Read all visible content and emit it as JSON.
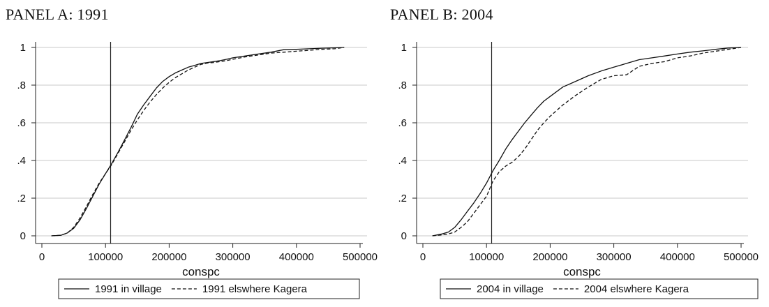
{
  "chart_data": [
    {
      "type": "line",
      "title": "PANEL A: 1991",
      "xlabel": "conspc",
      "ylabel": "",
      "xlim": [
        0,
        500000
      ],
      "ylim": [
        0,
        1
      ],
      "xticks": [
        "0",
        "100000",
        "200000",
        "300000",
        "400000",
        "500000"
      ],
      "yticks": [
        "0",
        ".2",
        ".4",
        ".6",
        ".8",
        "1"
      ],
      "grid": "horizontal",
      "legend_position": "bottom",
      "vline_x": 108000,
      "series": [
        {
          "name": "1991 in village",
          "style": "solid",
          "x": [
            15000,
            30000,
            40000,
            50000,
            60000,
            70000,
            80000,
            90000,
            100000,
            110000,
            120000,
            130000,
            140000,
            150000,
            160000,
            170000,
            180000,
            190000,
            200000,
            210000,
            220000,
            230000,
            240000,
            250000,
            260000,
            270000,
            280000,
            290000,
            300000,
            320000,
            340000,
            360000,
            380000,
            400000,
            420000,
            440000,
            460000,
            475000
          ],
          "y": [
            0,
            0.003,
            0.015,
            0.04,
            0.085,
            0.145,
            0.21,
            0.275,
            0.33,
            0.385,
            0.445,
            0.51,
            0.575,
            0.645,
            0.695,
            0.74,
            0.785,
            0.82,
            0.845,
            0.865,
            0.88,
            0.895,
            0.905,
            0.915,
            0.92,
            0.925,
            0.93,
            0.937,
            0.945,
            0.955,
            0.965,
            0.975,
            0.988,
            0.99,
            0.993,
            0.996,
            0.998,
            1.0
          ]
        },
        {
          "name": "1991 elswhere Kagera",
          "style": "dashed",
          "x": [
            15000,
            30000,
            40000,
            50000,
            60000,
            70000,
            80000,
            90000,
            100000,
            110000,
            120000,
            130000,
            140000,
            150000,
            160000,
            170000,
            180000,
            190000,
            200000,
            210000,
            220000,
            230000,
            240000,
            250000,
            260000,
            270000,
            280000,
            290000,
            300000,
            320000,
            340000,
            360000,
            380000,
            400000,
            420000,
            440000,
            460000,
            475000
          ],
          "y": [
            0,
            0.003,
            0.015,
            0.045,
            0.095,
            0.155,
            0.22,
            0.28,
            0.33,
            0.38,
            0.44,
            0.5,
            0.56,
            0.615,
            0.665,
            0.71,
            0.75,
            0.785,
            0.815,
            0.84,
            0.86,
            0.88,
            0.895,
            0.91,
            0.917,
            0.92,
            0.925,
            0.93,
            0.937,
            0.95,
            0.96,
            0.97,
            0.975,
            0.98,
            0.985,
            0.99,
            0.993,
            1.0
          ]
        }
      ]
    },
    {
      "type": "line",
      "title": "PANEL B: 2004",
      "xlabel": "conspc",
      "ylabel": "",
      "xlim": [
        0,
        500000
      ],
      "ylim": [
        0,
        1
      ],
      "xticks": [
        "0",
        "100000",
        "200000",
        "300000",
        "400000",
        "500000"
      ],
      "yticks": [
        "0",
        ".2",
        ".4",
        ".6",
        ".8",
        "1"
      ],
      "grid": "horizontal",
      "legend_position": "bottom",
      "vline_x": 108000,
      "series": [
        {
          "name": "2004 in village",
          "style": "solid",
          "x": [
            15000,
            30000,
            40000,
            50000,
            60000,
            70000,
            80000,
            90000,
            100000,
            110000,
            120000,
            130000,
            140000,
            150000,
            160000,
            170000,
            180000,
            190000,
            200000,
            220000,
            240000,
            260000,
            280000,
            300000,
            320000,
            340000,
            360000,
            380000,
            400000,
            420000,
            440000,
            460000,
            480000,
            500000
          ],
          "y": [
            0,
            0.01,
            0.02,
            0.045,
            0.085,
            0.13,
            0.175,
            0.225,
            0.28,
            0.345,
            0.4,
            0.46,
            0.51,
            0.555,
            0.6,
            0.64,
            0.68,
            0.715,
            0.74,
            0.79,
            0.82,
            0.85,
            0.875,
            0.895,
            0.915,
            0.935,
            0.945,
            0.955,
            0.965,
            0.975,
            0.982,
            0.99,
            0.997,
            1.0
          ]
        },
        {
          "name": "2004 elswhere Kagera",
          "style": "dashed",
          "x": [
            15000,
            30000,
            40000,
            50000,
            60000,
            70000,
            80000,
            90000,
            100000,
            110000,
            120000,
            130000,
            140000,
            150000,
            160000,
            170000,
            180000,
            190000,
            200000,
            220000,
            240000,
            260000,
            280000,
            300000,
            320000,
            340000,
            360000,
            380000,
            400000,
            420000,
            440000,
            460000,
            480000,
            500000
          ],
          "y": [
            0,
            0.005,
            0.01,
            0.02,
            0.045,
            0.075,
            0.12,
            0.165,
            0.21,
            0.29,
            0.34,
            0.37,
            0.39,
            0.42,
            0.46,
            0.51,
            0.56,
            0.6,
            0.635,
            0.695,
            0.745,
            0.79,
            0.83,
            0.85,
            0.855,
            0.9,
            0.915,
            0.925,
            0.945,
            0.955,
            0.97,
            0.98,
            0.99,
            1.0
          ]
        }
      ]
    }
  ]
}
